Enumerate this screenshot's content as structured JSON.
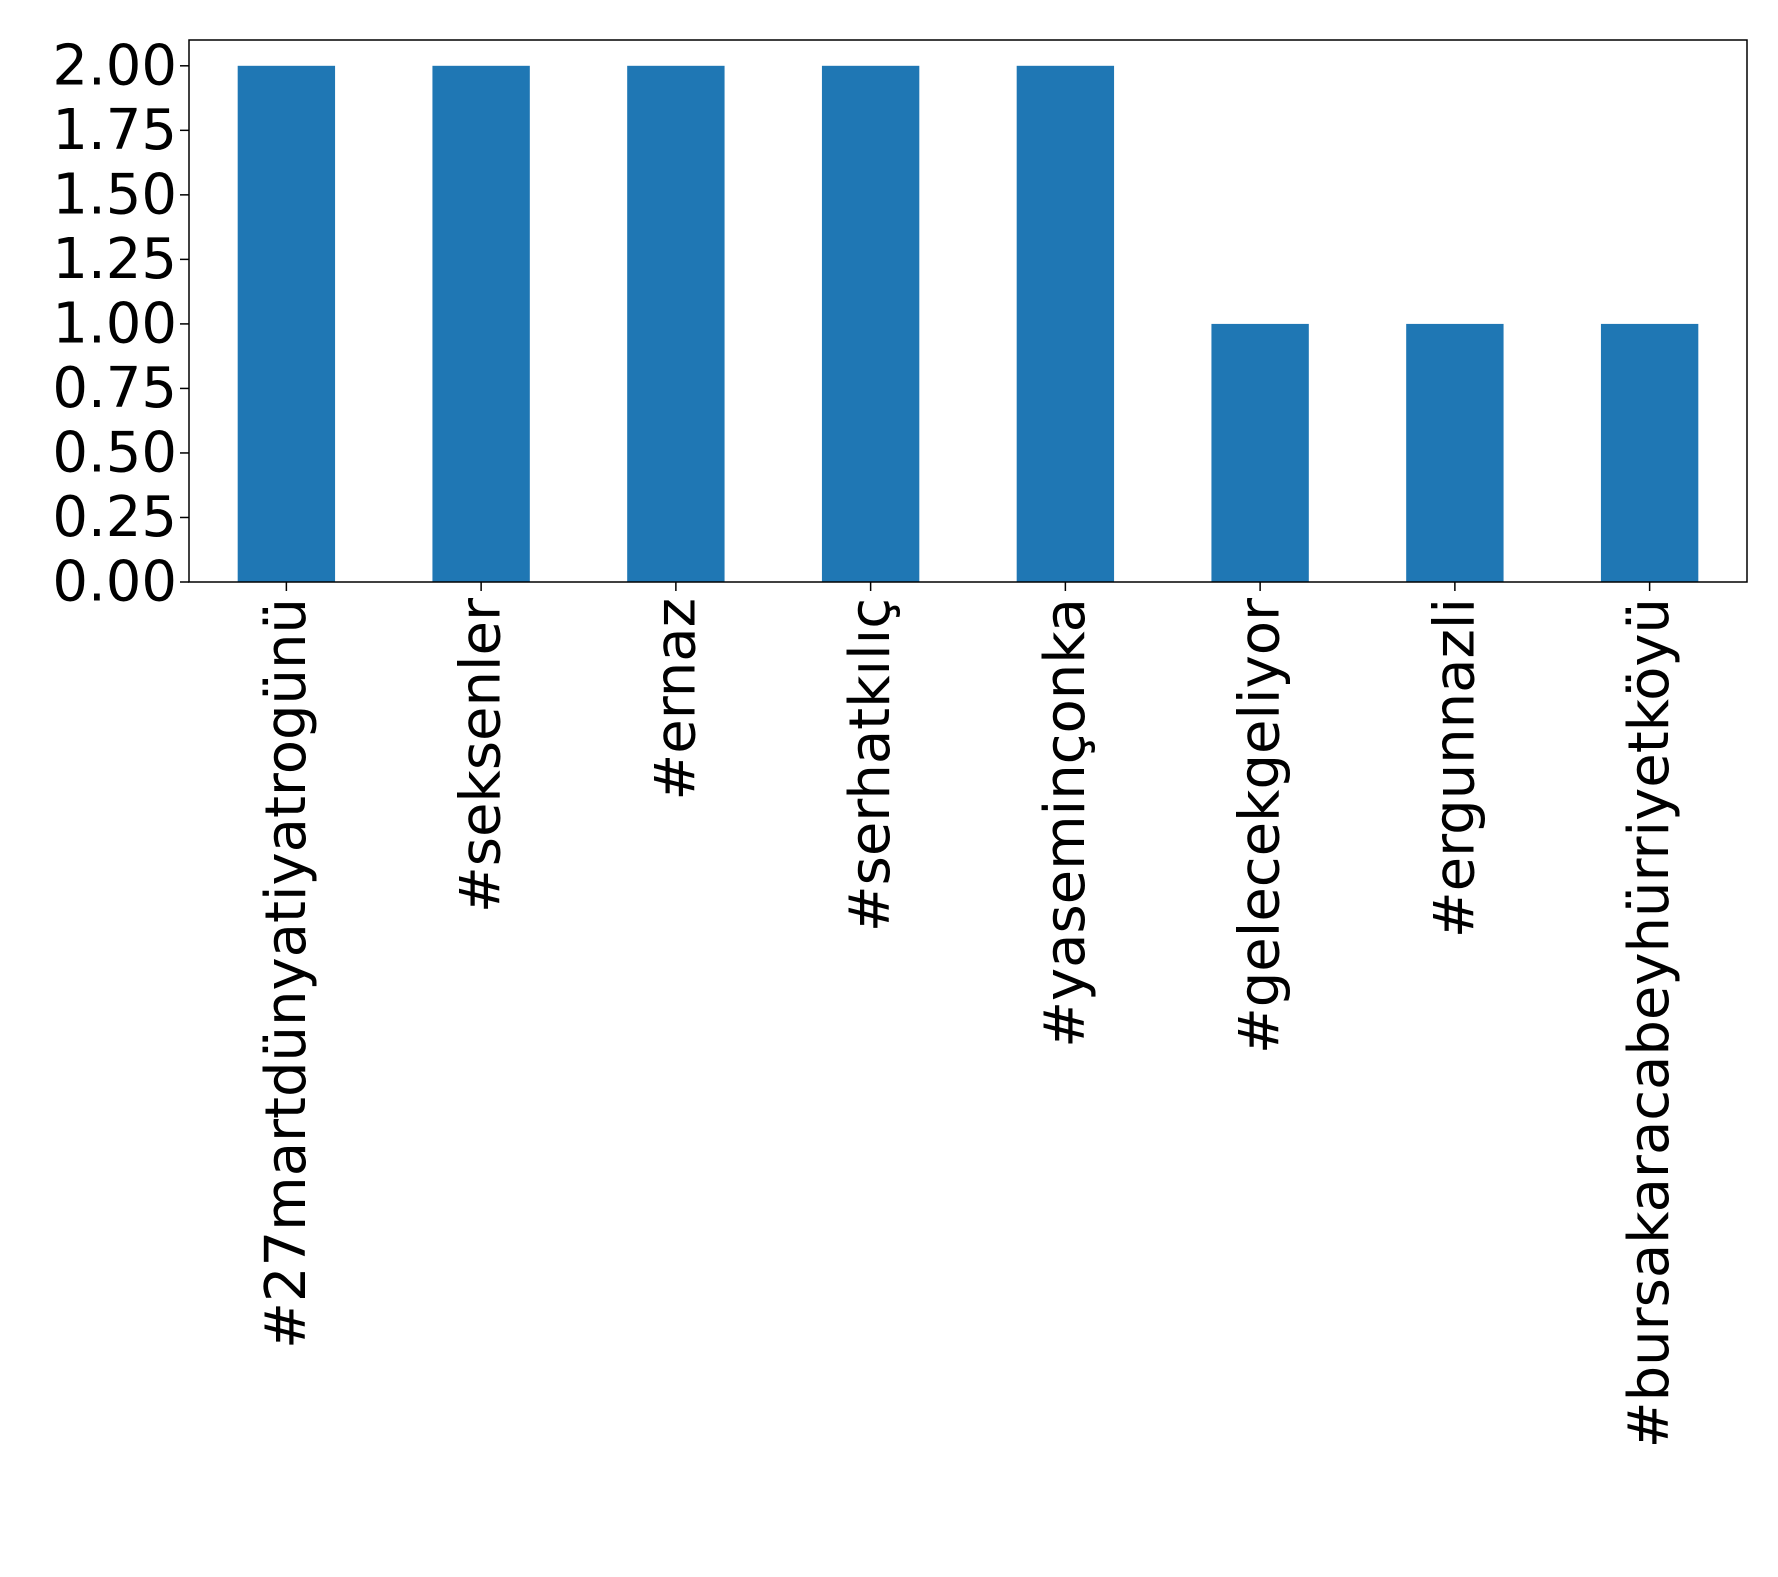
{
  "chart_data": {
    "type": "bar",
    "categories": [
      "#27martdünyatiyatrogünü",
      "#seksenler",
      "#ernaz",
      "#serhatkılıç",
      "#yaseminçonka",
      "#gelecekgeliyor",
      "#ergunnazli",
      "#bursakaracabeyhürriyetköyü"
    ],
    "values": [
      2,
      2,
      2,
      2,
      2,
      1,
      1,
      1
    ],
    "ylim": [
      0,
      2.1
    ],
    "yticks": [
      "0.00",
      "0.25",
      "0.50",
      "0.75",
      "1.00",
      "1.25",
      "1.50",
      "1.75",
      "2.00"
    ],
    "bar_color": "#1f77b4",
    "grid": false,
    "title": "",
    "xlabel": "",
    "ylabel": ""
  }
}
